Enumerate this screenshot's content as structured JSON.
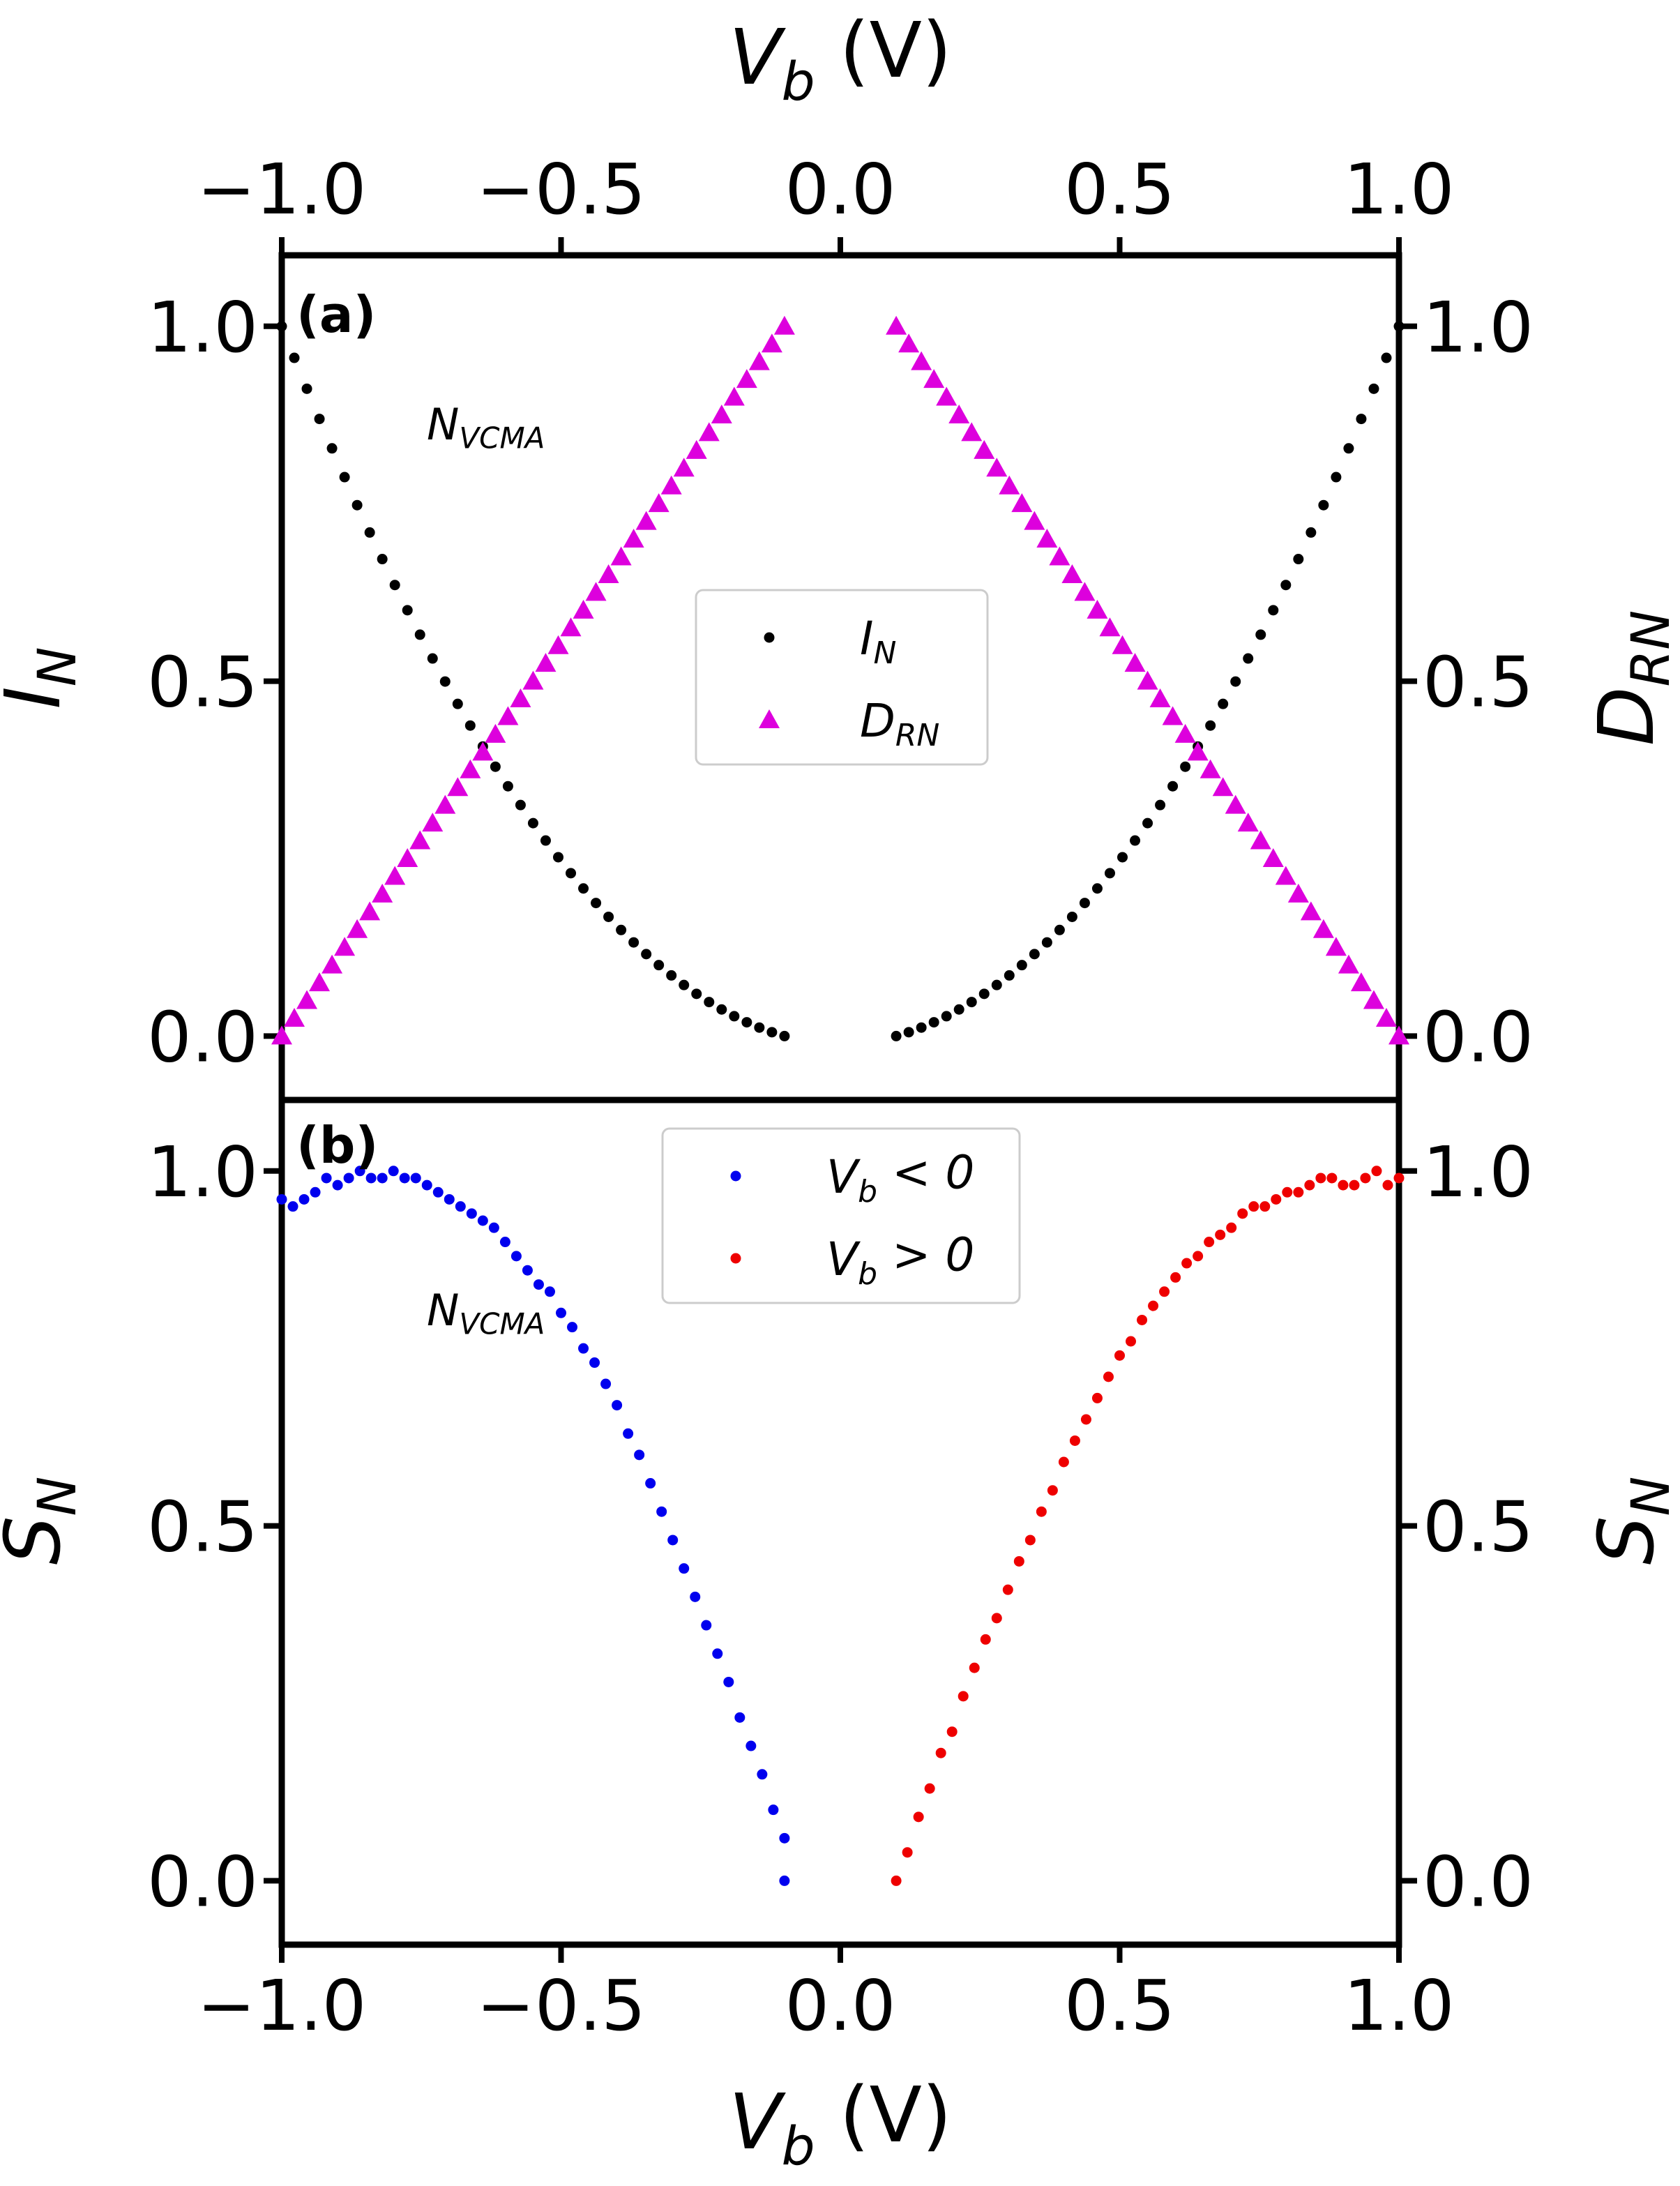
{
  "chart_data": [
    {
      "panel_label": "(a)",
      "type": "scatter",
      "top_xlabel": "V_b (V)",
      "ylabel_left": "I_N",
      "ylabel_right": "D_RN",
      "xlim": [
        -1.0,
        1.0
      ],
      "ylim": [
        -0.09,
        1.1
      ],
      "xticks": [
        "−1.0",
        "−0.5",
        "0.0",
        "0.5",
        "1.0"
      ],
      "yticks": [
        "0.0",
        "0.5",
        "1.0"
      ],
      "annotation": "N_VCMA",
      "legend_position": "center",
      "series": [
        {
          "name": "I_N",
          "marker": "dot",
          "color": "#000000",
          "segments": [
            {
              "x_start": -1.0,
              "x_end": -0.1,
              "y_start": 1.0,
              "y_end": 0.0,
              "curve": "convex",
              "n": 41
            },
            {
              "x_start": 0.1,
              "x_end": 1.0,
              "y_start": 0.0,
              "y_end": 1.0,
              "curve": "convex",
              "n": 41
            }
          ]
        },
        {
          "name": "D_RN",
          "marker": "triangle",
          "color": "#dd00dd",
          "segments": [
            {
              "x_start": -1.0,
              "x_end": -0.1,
              "y_start": 0.0,
              "y_end": 1.0,
              "curve": "linear",
              "n": 41
            },
            {
              "x_start": 0.1,
              "x_end": 1.0,
              "y_start": 1.0,
              "y_end": 0.0,
              "curve": "linear",
              "n": 41
            }
          ]
        }
      ]
    },
    {
      "panel_label": "(b)",
      "type": "scatter",
      "xlabel": "V_b (V)",
      "ylabel_left": "S_N",
      "ylabel_right": "S_N",
      "xlim": [
        -1.0,
        1.0
      ],
      "ylim": [
        -0.09,
        1.1
      ],
      "xticks": [
        "−1.0",
        "−0.5",
        "0.0",
        "0.5",
        "1.0"
      ],
      "yticks": [
        "0.0",
        "0.5",
        "1.0"
      ],
      "annotation": "N_VCMA",
      "legend_position": "upper center",
      "series": [
        {
          "name": "V_b < 0",
          "color": "#0000ee",
          "points": [
            [
              -1.0,
              0.96
            ],
            [
              -0.98,
              0.95
            ],
            [
              -0.96,
              0.96
            ],
            [
              -0.94,
              0.97
            ],
            [
              -0.92,
              0.99
            ],
            [
              -0.9,
              0.98
            ],
            [
              -0.88,
              0.99
            ],
            [
              -0.86,
              1.0
            ],
            [
              -0.84,
              0.99
            ],
            [
              -0.82,
              0.99
            ],
            [
              -0.8,
              1.0
            ],
            [
              -0.78,
              0.99
            ],
            [
              -0.76,
              0.99
            ],
            [
              -0.74,
              0.98
            ],
            [
              -0.72,
              0.97
            ],
            [
              -0.7,
              0.96
            ],
            [
              -0.68,
              0.95
            ],
            [
              -0.66,
              0.94
            ],
            [
              -0.64,
              0.93
            ],
            [
              -0.62,
              0.92
            ],
            [
              -0.6,
              0.9
            ],
            [
              -0.58,
              0.88
            ],
            [
              -0.56,
              0.86
            ],
            [
              -0.54,
              0.84
            ],
            [
              -0.52,
              0.83
            ],
            [
              -0.5,
              0.8
            ],
            [
              -0.48,
              0.78
            ],
            [
              -0.46,
              0.75
            ],
            [
              -0.44,
              0.73
            ],
            [
              -0.42,
              0.7
            ],
            [
              -0.4,
              0.67
            ],
            [
              -0.38,
              0.63
            ],
            [
              -0.36,
              0.6
            ],
            [
              -0.34,
              0.56
            ],
            [
              -0.32,
              0.52
            ],
            [
              -0.3,
              0.48
            ],
            [
              -0.28,
              0.44
            ],
            [
              -0.26,
              0.4
            ],
            [
              -0.24,
              0.36
            ],
            [
              -0.22,
              0.32
            ],
            [
              -0.2,
              0.28
            ],
            [
              -0.18,
              0.23
            ],
            [
              -0.16,
              0.19
            ],
            [
              -0.14,
              0.15
            ],
            [
              -0.12,
              0.1
            ],
            [
              -0.1,
              0.06
            ],
            [
              -0.1,
              0.0
            ]
          ]
        },
        {
          "name": "V_b > 0",
          "color": "#ee0000",
          "points": [
            [
              0.1,
              0.0
            ],
            [
              0.12,
              0.04
            ],
            [
              0.14,
              0.09
            ],
            [
              0.16,
              0.13
            ],
            [
              0.18,
              0.18
            ],
            [
              0.2,
              0.21
            ],
            [
              0.22,
              0.26
            ],
            [
              0.24,
              0.3
            ],
            [
              0.26,
              0.34
            ],
            [
              0.28,
              0.37
            ],
            [
              0.3,
              0.41
            ],
            [
              0.32,
              0.45
            ],
            [
              0.34,
              0.48
            ],
            [
              0.36,
              0.52
            ],
            [
              0.38,
              0.55
            ],
            [
              0.4,
              0.59
            ],
            [
              0.42,
              0.62
            ],
            [
              0.44,
              0.65
            ],
            [
              0.46,
              0.68
            ],
            [
              0.48,
              0.71
            ],
            [
              0.5,
              0.74
            ],
            [
              0.52,
              0.76
            ],
            [
              0.54,
              0.79
            ],
            [
              0.56,
              0.81
            ],
            [
              0.58,
              0.83
            ],
            [
              0.6,
              0.85
            ],
            [
              0.62,
              0.87
            ],
            [
              0.64,
              0.88
            ],
            [
              0.66,
              0.9
            ],
            [
              0.68,
              0.91
            ],
            [
              0.7,
              0.92
            ],
            [
              0.72,
              0.94
            ],
            [
              0.74,
              0.95
            ],
            [
              0.76,
              0.95
            ],
            [
              0.78,
              0.96
            ],
            [
              0.8,
              0.97
            ],
            [
              0.82,
              0.97
            ],
            [
              0.84,
              0.98
            ],
            [
              0.86,
              0.99
            ],
            [
              0.88,
              0.99
            ],
            [
              0.9,
              0.98
            ],
            [
              0.92,
              0.98
            ],
            [
              0.94,
              0.99
            ],
            [
              0.96,
              1.0
            ],
            [
              0.98,
              0.98
            ],
            [
              1.0,
              0.99
            ]
          ]
        }
      ]
    }
  ]
}
